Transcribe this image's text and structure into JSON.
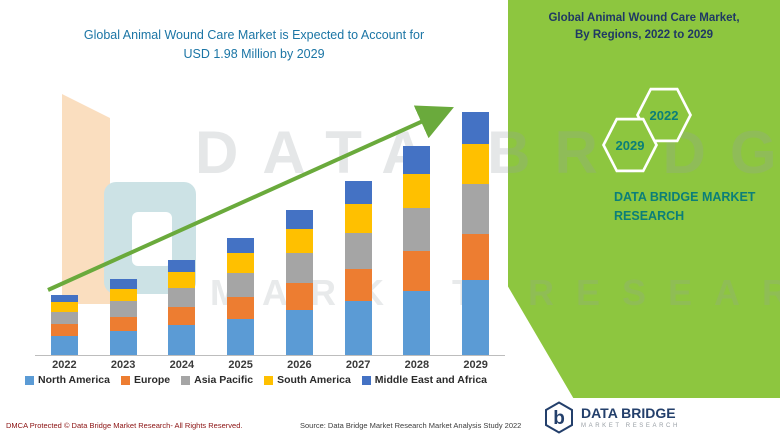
{
  "chart": {
    "title_line1": "Global Animal Wound Care Market is Expected to Account for",
    "title_line2": "USD 1.98 Million by 2029",
    "title_color": "#1b75a5"
  },
  "chart_data": {
    "type": "bar",
    "stacked": true,
    "title": "Global Animal Wound Care Market is Expected to Account for USD 1.98 Million by 2029",
    "categories": [
      "2022",
      "2023",
      "2024",
      "2025",
      "2026",
      "2027",
      "2028",
      "2029"
    ],
    "series": [
      {
        "name": "North America",
        "color": "#5B9BD5",
        "values": [
          0.156,
          0.195,
          0.242,
          0.296,
          0.366,
          0.437,
          0.522,
          0.608
        ]
      },
      {
        "name": "Europe",
        "color": "#ED7D31",
        "values": [
          0.094,
          0.117,
          0.148,
          0.179,
          0.218,
          0.265,
          0.32,
          0.374
        ]
      },
      {
        "name": "Asia Pacific",
        "color": "#A5A5A5",
        "values": [
          0.101,
          0.125,
          0.156,
          0.195,
          0.242,
          0.288,
          0.351,
          0.405
        ]
      },
      {
        "name": "South America",
        "color": "#FFC000",
        "values": [
          0.078,
          0.101,
          0.125,
          0.156,
          0.195,
          0.234,
          0.281,
          0.327
        ]
      },
      {
        "name": "Middle East and Africa",
        "color": "#4472C4",
        "values": [
          0.062,
          0.078,
          0.101,
          0.125,
          0.156,
          0.187,
          0.226,
          0.265
        ]
      }
    ],
    "unit": "USD Million",
    "xlabel": "",
    "ylabel": "",
    "ylim": [
      0,
      2.0
    ],
    "grid": false,
    "legend_position": "bottom",
    "trend_arrow": true,
    "trend_arrow_color": "#6aaa3c"
  },
  "side_panel": {
    "title_line1": "Global Animal Wound Care Market,",
    "title_line2": "By Regions, 2022 to 2029",
    "hex_top_label": "2022",
    "hex_bottom_label": "2029",
    "brand_line1": "DATA BRIDGE MARKET",
    "brand_line2": "RESEARCH",
    "bg_color": "#8dc63f",
    "title_color": "#1f3864",
    "brand_color": "#0b7f78"
  },
  "watermark": {
    "line1": "DATA BRIDGE",
    "line2": "MARKET RESEARCH"
  },
  "footer": {
    "left": "DMCA Protected © Data Bridge Market Research- All Rights Reserved.",
    "source": "Source: Data Bridge Market Research Market Analysis Study 2022",
    "logo_text": "DATA BRIDGE",
    "logo_subtext": "MARKET RESEARCH"
  }
}
